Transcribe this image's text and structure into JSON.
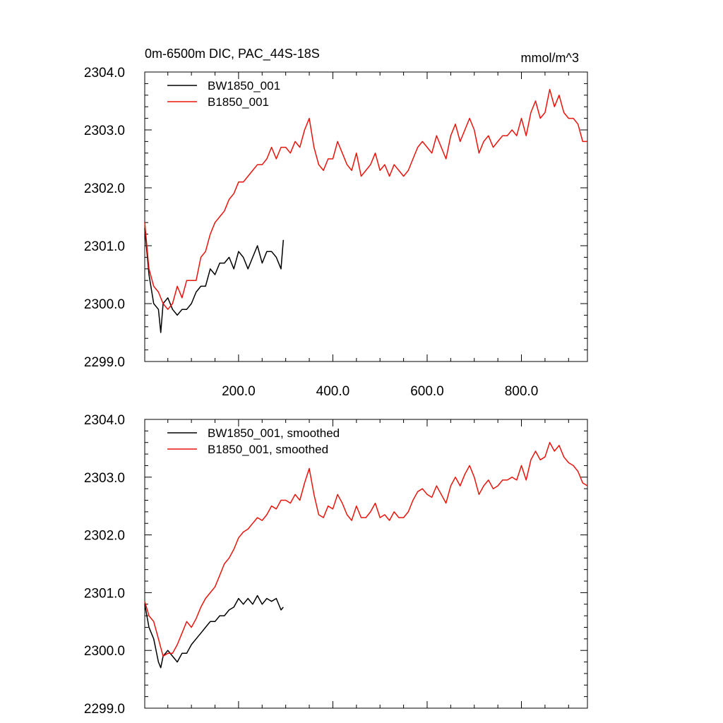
{
  "chart_data": [
    {
      "type": "line",
      "title": "0m-6500m DIC, PAC_44S-18S",
      "units": "mmol/m^3",
      "xlim": [
        1,
        940
      ],
      "ylim": [
        2299.0,
        2304.0
      ],
      "y_ticks": [
        2299.0,
        2300.0,
        2301.0,
        2302.0,
        2303.0,
        2304.0
      ],
      "y_tick_labels": [
        "2299.0",
        "2300.0",
        "2301.0",
        "2302.0",
        "2303.0",
        "2304.0"
      ],
      "x_ticks": [
        200,
        400,
        600,
        800
      ],
      "x_tick_labels": [
        "200.0",
        "400.0",
        "600.0",
        "800.0"
      ],
      "legend": "top-left",
      "grid": false,
      "series": [
        {
          "name": "BW1850_001",
          "color": "#000000",
          "x": [
            1,
            10,
            20,
            30,
            35,
            40,
            50,
            60,
            70,
            80,
            90,
            100,
            110,
            120,
            130,
            140,
            150,
            160,
            170,
            180,
            190,
            200,
            210,
            220,
            230,
            240,
            250,
            260,
            270,
            280,
            290,
            295
          ],
          "y": [
            2301.3,
            2300.5,
            2300.0,
            2299.9,
            2299.5,
            2300.0,
            2300.1,
            2299.9,
            2299.8,
            2299.9,
            2299.9,
            2300.0,
            2300.2,
            2300.3,
            2300.3,
            2300.6,
            2300.5,
            2300.7,
            2300.7,
            2300.8,
            2300.6,
            2300.9,
            2300.8,
            2300.6,
            2300.8,
            2301.0,
            2300.7,
            2300.9,
            2300.9,
            2300.8,
            2300.6,
            2301.1
          ]
        },
        {
          "name": "B1850_001",
          "color": "#e8140c",
          "x": [
            1,
            10,
            20,
            30,
            40,
            50,
            60,
            70,
            80,
            90,
            100,
            110,
            120,
            130,
            140,
            150,
            160,
            170,
            180,
            190,
            200,
            210,
            220,
            230,
            240,
            250,
            260,
            270,
            280,
            290,
            300,
            310,
            320,
            330,
            340,
            350,
            360,
            370,
            380,
            390,
            400,
            410,
            420,
            430,
            440,
            450,
            460,
            470,
            480,
            490,
            500,
            510,
            520,
            530,
            540,
            550,
            560,
            570,
            580,
            590,
            600,
            610,
            620,
            630,
            640,
            650,
            660,
            670,
            680,
            690,
            700,
            710,
            720,
            730,
            740,
            750,
            760,
            770,
            780,
            790,
            800,
            810,
            820,
            830,
            840,
            850,
            860,
            870,
            880,
            890,
            900,
            910,
            920,
            930,
            940
          ],
          "y": [
            2301.4,
            2300.6,
            2300.3,
            2300.2,
            2300.0,
            2299.9,
            2300.0,
            2300.3,
            2300.1,
            2300.4,
            2300.4,
            2300.4,
            2300.8,
            2300.9,
            2301.2,
            2301.4,
            2301.5,
            2301.6,
            2301.8,
            2301.9,
            2302.1,
            2302.1,
            2302.2,
            2302.3,
            2302.4,
            2302.4,
            2302.5,
            2302.7,
            2302.5,
            2302.7,
            2302.7,
            2302.6,
            2302.8,
            2302.7,
            2303.0,
            2303.2,
            2302.7,
            2302.4,
            2302.3,
            2302.5,
            2302.5,
            2302.8,
            2302.6,
            2302.4,
            2302.3,
            2302.6,
            2302.2,
            2302.3,
            2302.4,
            2302.6,
            2302.3,
            2302.4,
            2302.2,
            2302.4,
            2302.3,
            2302.2,
            2302.3,
            2302.5,
            2302.7,
            2302.8,
            2302.7,
            2302.6,
            2302.9,
            2302.7,
            2302.5,
            2302.9,
            2303.1,
            2302.8,
            2303.0,
            2303.2,
            2303.0,
            2302.6,
            2302.8,
            2302.9,
            2302.7,
            2302.8,
            2302.9,
            2302.9,
            2303.0,
            2302.9,
            2303.2,
            2302.9,
            2303.3,
            2303.5,
            2303.2,
            2303.3,
            2303.7,
            2303.4,
            2303.6,
            2303.3,
            2303.2,
            2303.2,
            2303.1,
            2302.8,
            2302.8
          ]
        }
      ]
    },
    {
      "type": "line",
      "xlim": [
        1,
        940
      ],
      "ylim": [
        2299.0,
        2304.0
      ],
      "y_ticks": [
        2299.0,
        2300.0,
        2301.0,
        2302.0,
        2303.0,
        2304.0
      ],
      "y_tick_labels": [
        "2299.0",
        "2300.0",
        "2301.0",
        "2302.0",
        "2303.0",
        "2304.0"
      ],
      "legend": "top-left",
      "grid": false,
      "series": [
        {
          "name": "BW1850_001, smoothed",
          "color": "#000000",
          "x": [
            1,
            10,
            20,
            30,
            35,
            40,
            50,
            60,
            70,
            80,
            90,
            100,
            110,
            120,
            130,
            140,
            150,
            160,
            170,
            180,
            190,
            200,
            210,
            220,
            230,
            240,
            250,
            260,
            270,
            280,
            290,
            295
          ],
          "y": [
            2300.8,
            2300.4,
            2300.2,
            2299.8,
            2299.7,
            2299.9,
            2300.0,
            2299.9,
            2299.8,
            2299.95,
            2299.95,
            2300.1,
            2300.2,
            2300.3,
            2300.4,
            2300.5,
            2300.5,
            2300.6,
            2300.6,
            2300.7,
            2300.75,
            2300.9,
            2300.8,
            2300.9,
            2300.8,
            2300.95,
            2300.8,
            2300.9,
            2300.85,
            2300.9,
            2300.7,
            2300.75
          ]
        },
        {
          "name": "B1850_001, smoothed",
          "color": "#e8140c",
          "x": [
            1,
            10,
            20,
            30,
            40,
            50,
            60,
            70,
            80,
            90,
            100,
            110,
            120,
            130,
            140,
            150,
            160,
            170,
            180,
            190,
            200,
            210,
            220,
            230,
            240,
            250,
            260,
            270,
            280,
            290,
            300,
            310,
            320,
            330,
            340,
            350,
            360,
            370,
            380,
            390,
            400,
            410,
            420,
            430,
            440,
            450,
            460,
            470,
            480,
            490,
            500,
            510,
            520,
            530,
            540,
            550,
            560,
            570,
            580,
            590,
            600,
            610,
            620,
            630,
            640,
            650,
            660,
            670,
            680,
            690,
            700,
            710,
            720,
            730,
            740,
            750,
            760,
            770,
            780,
            790,
            800,
            810,
            820,
            830,
            840,
            850,
            860,
            870,
            880,
            890,
            900,
            910,
            920,
            930,
            940
          ],
          "y": [
            2300.85,
            2300.6,
            2300.5,
            2300.2,
            2299.9,
            2299.95,
            2299.95,
            2300.1,
            2300.3,
            2300.5,
            2300.4,
            2300.55,
            2300.75,
            2300.9,
            2301.0,
            2301.1,
            2301.3,
            2301.5,
            2301.6,
            2301.75,
            2301.95,
            2302.05,
            2302.1,
            2302.2,
            2302.3,
            2302.25,
            2302.35,
            2302.5,
            2302.45,
            2302.6,
            2302.6,
            2302.55,
            2302.7,
            2302.6,
            2302.9,
            2303.15,
            2302.7,
            2302.35,
            2302.3,
            2302.5,
            2302.45,
            2302.7,
            2302.55,
            2302.35,
            2302.25,
            2302.5,
            2302.3,
            2302.3,
            2302.4,
            2302.55,
            2302.3,
            2302.35,
            2302.25,
            2302.4,
            2302.3,
            2302.3,
            2302.4,
            2302.6,
            2302.75,
            2302.8,
            2302.7,
            2302.65,
            2302.85,
            2302.7,
            2302.55,
            2302.85,
            2303.0,
            2302.85,
            2303.05,
            2303.2,
            2303.0,
            2302.7,
            2302.85,
            2302.95,
            2302.8,
            2302.85,
            2302.95,
            2302.95,
            2303.0,
            2302.95,
            2303.2,
            2302.95,
            2303.3,
            2303.45,
            2303.3,
            2303.35,
            2303.6,
            2303.45,
            2303.55,
            2303.35,
            2303.25,
            2303.2,
            2303.1,
            2302.9,
            2302.85
          ]
        }
      ]
    }
  ]
}
